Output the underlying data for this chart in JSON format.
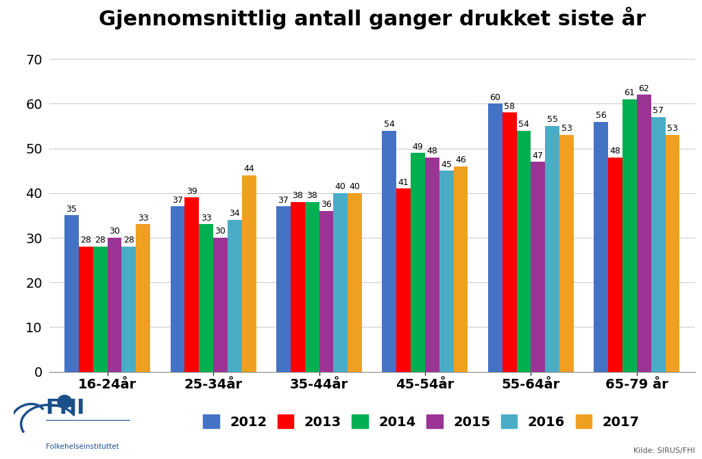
{
  "title": "Gjennomsnittlig antall ganger drukket siste år",
  "categories": [
    "16-24år",
    "25-34år",
    "35-44år",
    "45-54år",
    "55-64år",
    "65-79 år"
  ],
  "series": {
    "2012": [
      35,
      37,
      37,
      54,
      60,
      56
    ],
    "2013": [
      28,
      39,
      38,
      41,
      58,
      48
    ],
    "2014": [
      28,
      33,
      38,
      49,
      54,
      61
    ],
    "2015": [
      30,
      30,
      36,
      48,
      47,
      62
    ],
    "2016": [
      28,
      34,
      40,
      45,
      55,
      57
    ],
    "2017": [
      33,
      44,
      40,
      46,
      53,
      53
    ]
  },
  "colors": {
    "2012": "#4472c4",
    "2013": "#ff0000",
    "2014": "#00b050",
    "2015": "#9b3494",
    "2016": "#4bacc6",
    "2017": "#f0a020"
  },
  "ylim": [
    0,
    75
  ],
  "yticks": [
    0,
    10,
    20,
    30,
    40,
    50,
    60,
    70
  ],
  "background_color": "#ffffff",
  "grid_color": "#cccccc",
  "source_text": "Kilde: SIRUS/FHI",
  "fhi_logo_text": "FHI",
  "fhi_sub_text": "Folkehelseinstituttet",
  "title_fontsize": 22,
  "label_fontsize": 9,
  "tick_fontsize": 14,
  "legend_fontsize": 14,
  "bar_width": 0.135
}
